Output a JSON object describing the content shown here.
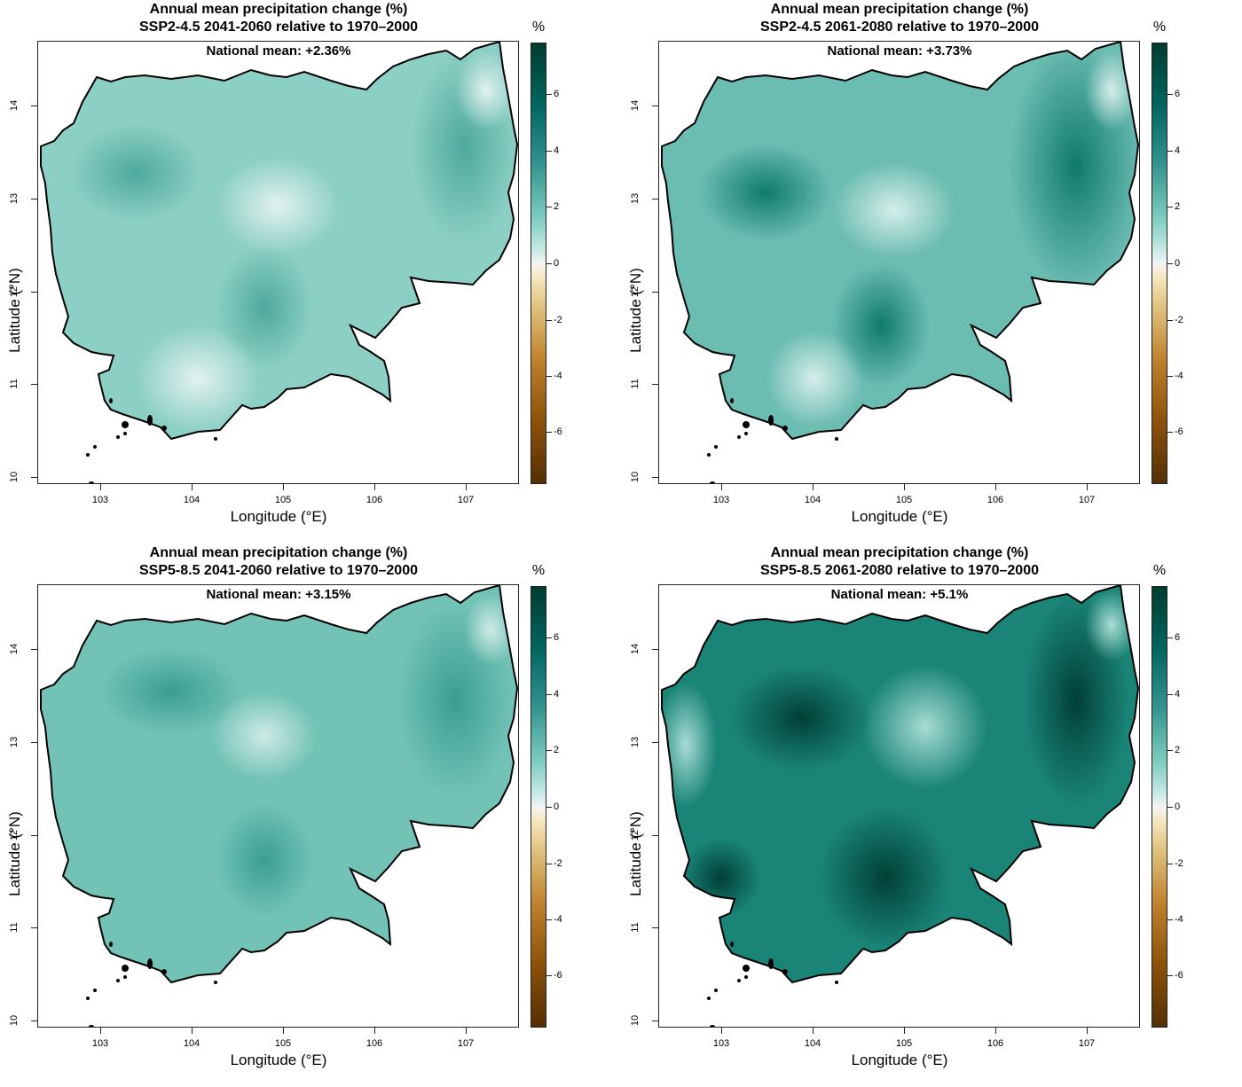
{
  "figure": {
    "axes": {
      "x_label": "Longitude (°E)",
      "y_label": "Latitude (°N)",
      "x_ticks": [
        "103",
        "104",
        "105",
        "106",
        "107"
      ],
      "y_ticks": [
        "10",
        "11",
        "12",
        "13",
        "14"
      ]
    },
    "colorbar": {
      "unit": "%",
      "ticks": [
        "6",
        "4",
        "2",
        "0",
        "-2",
        "-4",
        "-6"
      ],
      "palette": [
        "#003c30",
        "#01665e",
        "#35978f",
        "#80cdc1",
        "#c7eae5",
        "#f5f5f5",
        "#f6e8c3",
        "#dfc27d",
        "#bf812d",
        "#8c510a",
        "#543005"
      ]
    },
    "panels": [
      {
        "title": "Annual mean precipitation change (%)",
        "subtitle": "SSP2-4.5 2041-2060 relative to 1970–2000",
        "national_mean": "National mean: +2.36%",
        "mean_value": 2.36
      },
      {
        "title": "Annual mean precipitation change (%)",
        "subtitle": "SSP2-4.5 2061-2080 relative to 1970–2000",
        "national_mean": "National mean: +3.73%",
        "mean_value": 3.73
      },
      {
        "title": "Annual mean precipitation change (%)",
        "subtitle": "SSP5-8.5 2041-2060 relative to 1970–2000",
        "national_mean": "National mean: +3.15%",
        "mean_value": 3.15
      },
      {
        "title": "Annual mean precipitation change (%)",
        "subtitle": "SSP5-8.5 2061-2080 relative to 1970–2000",
        "national_mean": "National mean: +5.1%",
        "mean_value": 5.1
      }
    ]
  }
}
